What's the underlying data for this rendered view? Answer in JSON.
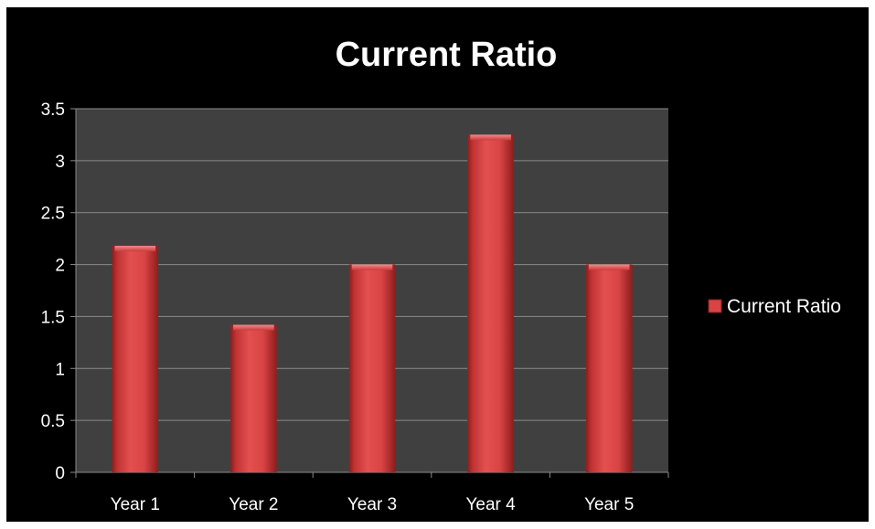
{
  "chart_data": {
    "type": "bar",
    "title": "Current Ratio",
    "categories": [
      "Year 1",
      "Year 2",
      "Year 3",
      "Year 4",
      "Year 5"
    ],
    "series": [
      {
        "name": "Current Ratio",
        "values": [
          2.18,
          1.42,
          2.0,
          3.25,
          2.0
        ]
      }
    ],
    "ylim": [
      0,
      3.5
    ],
    "yticks": [
      "0",
      "0.5",
      "1",
      "1.5",
      "2",
      "2.5",
      "3",
      "3.5"
    ],
    "ytick_values": [
      0,
      0.5,
      1,
      1.5,
      2,
      2.5,
      3,
      3.5
    ],
    "grid": true,
    "legend_position": "right",
    "colors": {
      "background": "#000000",
      "plot_area": "#404040",
      "gridline": "#8a8a8a",
      "bar": "#d94444",
      "bar_dark": "#8e1d1d",
      "bar_light": "#f07070",
      "text": "#ffffff"
    }
  }
}
